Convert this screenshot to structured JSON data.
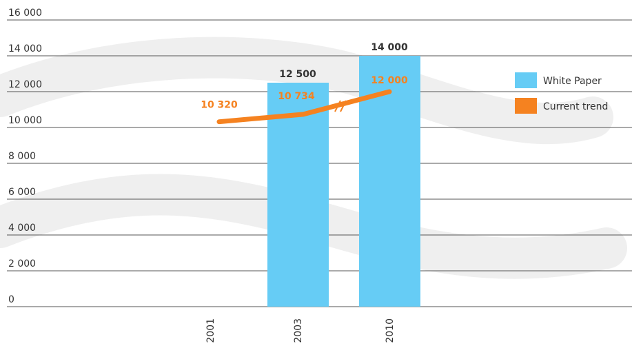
{
  "chart_data": {
    "type": "bar",
    "categories": [
      "2001",
      "2003",
      "2010"
    ],
    "series": [
      {
        "name": "White Paper",
        "type": "bar",
        "color": "#66ccf5",
        "values": [
          null,
          12500,
          14000
        ],
        "value_labels": [
          null,
          "12 500",
          "14 000"
        ]
      },
      {
        "name": "Current trend",
        "type": "line",
        "color": "#f58220",
        "values": [
          10320,
          10734,
          12000
        ],
        "value_labels": [
          "10 320",
          "10 734",
          "12 000"
        ]
      }
    ],
    "ylim": [
      0,
      16000
    ],
    "yticks": [
      0,
      {
        "value": 2000,
        "label": "2 000"
      },
      {
        "value": 4000,
        "label": "4 000"
      },
      {
        "value": 6000,
        "label": "6 000"
      },
      {
        "value": 8000,
        "label": "8 000"
      },
      {
        "value": 10000,
        "label": "10 000"
      },
      {
        "value": 12000,
        "label": "12 000"
      },
      {
        "value": 14000,
        "label": "14 000"
      },
      {
        "value": 16000,
        "label": "16 000"
      }
    ],
    "grid": true,
    "legend": "right"
  }
}
